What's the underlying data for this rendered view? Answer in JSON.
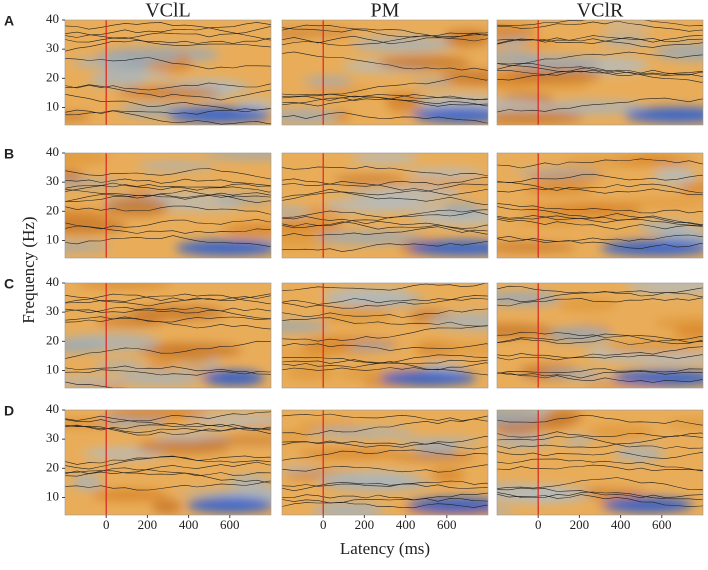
{
  "chart_data": {
    "type": "heatmap-grid",
    "column_titles": [
      "VClL",
      "PM",
      "VClR"
    ],
    "row_labels": [
      "A",
      "B",
      "C",
      "D"
    ],
    "x_label": "Latency (ms)",
    "y_label": "Frequency (Hz)",
    "xlim": [
      -200,
      800
    ],
    "ylim": [
      4,
      40
    ],
    "xticks": [
      0,
      200,
      400,
      600
    ],
    "yticks": [
      10,
      20,
      30,
      40
    ]
  }
}
